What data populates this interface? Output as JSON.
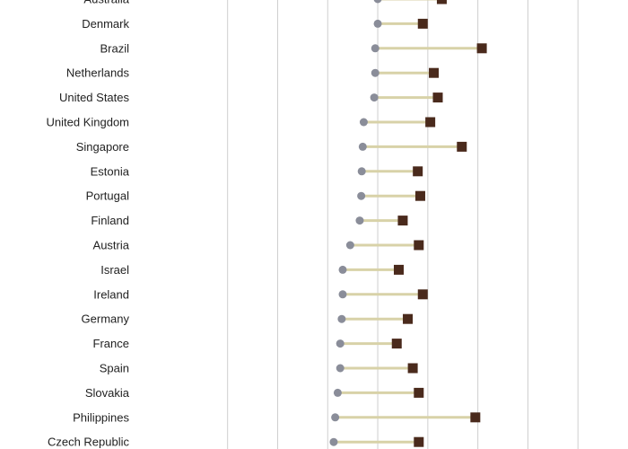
{
  "chart_data": {
    "type": "dumbbell",
    "title": "",
    "xlabel": "",
    "ylabel": "",
    "grid": true,
    "xlim": [
      -3.5,
      6
    ],
    "gridlines": [
      -2,
      -1,
      0,
      1,
      2,
      3,
      4,
      5
    ],
    "categories": [
      "Australia",
      "Denmark",
      "Brazil",
      "Netherlands",
      "United States",
      "United Kingdom",
      "Singapore",
      "Estonia",
      "Portugal",
      "Finland",
      "Austria",
      "Israel",
      "Ireland",
      "Germany",
      "France",
      "Spain",
      "Slovakia",
      "Philippines",
      "Czech Republic"
    ],
    "series": [
      {
        "values": [
          1.0,
          1.0,
          0.95,
          0.95,
          0.93,
          0.72,
          0.7,
          0.68,
          0.67,
          0.64,
          0.45,
          0.3,
          0.3,
          0.28,
          0.25,
          0.25,
          0.2,
          0.15,
          0.12
        ]
      },
      {
        "values": [
          2.28,
          1.9,
          3.08,
          2.12,
          2.2,
          2.05,
          2.68,
          1.8,
          1.85,
          1.5,
          1.82,
          1.42,
          1.9,
          1.6,
          1.38,
          1.7,
          1.82,
          2.95,
          1.82
        ]
      }
    ],
    "colors": {
      "start_marker": "#8a8d99",
      "end_marker": "#4a2a1c",
      "connector": "#d8d2a8",
      "grid": "#cfcfcf",
      "label": "#222222"
    }
  }
}
